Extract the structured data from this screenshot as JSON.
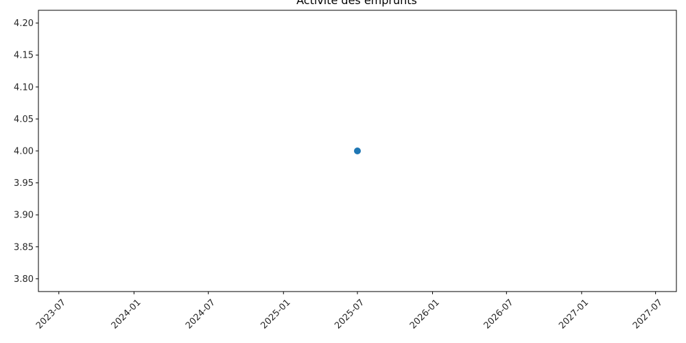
{
  "chart_data": {
    "type": "scatter",
    "title": "Activité des emprunts",
    "xlabel": "",
    "ylabel": "",
    "x_axis_type": "date",
    "xlim": [
      "2023-05-12",
      "2027-08-21"
    ],
    "ylim": [
      3.78,
      4.22
    ],
    "x_ticks": [
      "2023-07",
      "2024-01",
      "2024-07",
      "2025-01",
      "2025-07",
      "2026-01",
      "2026-07",
      "2027-01",
      "2027-07"
    ],
    "y_ticks": [
      "3.80",
      "3.85",
      "3.90",
      "3.95",
      "4.00",
      "4.05",
      "4.10",
      "4.15",
      "4.20"
    ],
    "series": [
      {
        "points": [
          {
            "x": "2025-07-01",
            "y": 4.0
          }
        ],
        "color": "#1f77b4"
      }
    ],
    "grid": false,
    "legend": "none"
  }
}
